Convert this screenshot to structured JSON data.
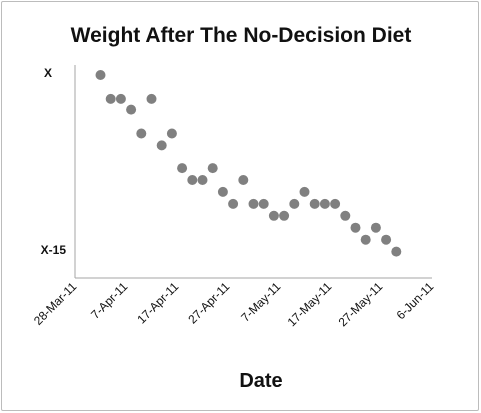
{
  "chart_data": {
    "type": "scatter",
    "title": "Weight After The No-Decision Diet",
    "xlabel": "Date",
    "ylabel": "",
    "x_tick_labels": [
      "28-Mar-11",
      "7-Apr-11",
      "17-Apr-11",
      "27-Apr-11",
      "7-May-11",
      "17-May-11",
      "27-May-11",
      "6-Jun-11"
    ],
    "xlim": [
      "2011-03-28",
      "2011-06-06"
    ],
    "y_tick_labels": [
      "X",
      "X-15"
    ],
    "y_tick_values": [
      0,
      -15
    ],
    "ylim": [
      -16,
      0
    ],
    "grid": false,
    "marker_color": "#808080",
    "points": [
      {
        "x": "2011-04-02",
        "y": 0.0
      },
      {
        "x": "2011-04-04",
        "y": -2.0
      },
      {
        "x": "2011-04-06",
        "y": -2.0
      },
      {
        "x": "2011-04-08",
        "y": -2.9
      },
      {
        "x": "2011-04-10",
        "y": -4.9
      },
      {
        "x": "2011-04-12",
        "y": -2.0
      },
      {
        "x": "2011-04-14",
        "y": -5.9
      },
      {
        "x": "2011-04-16",
        "y": -4.9
      },
      {
        "x": "2011-04-18",
        "y": -7.8
      },
      {
        "x": "2011-04-20",
        "y": -8.8
      },
      {
        "x": "2011-04-22",
        "y": -8.8
      },
      {
        "x": "2011-04-24",
        "y": -7.8
      },
      {
        "x": "2011-04-26",
        "y": -9.8
      },
      {
        "x": "2011-04-28",
        "y": -10.8
      },
      {
        "x": "2011-04-30",
        "y": -8.8
      },
      {
        "x": "2011-05-02",
        "y": -10.8
      },
      {
        "x": "2011-05-04",
        "y": -10.8
      },
      {
        "x": "2011-05-06",
        "y": -11.8
      },
      {
        "x": "2011-05-08",
        "y": -11.8
      },
      {
        "x": "2011-05-10",
        "y": -10.8
      },
      {
        "x": "2011-05-12",
        "y": -9.8
      },
      {
        "x": "2011-05-14",
        "y": -10.8
      },
      {
        "x": "2011-05-16",
        "y": -10.8
      },
      {
        "x": "2011-05-18",
        "y": -10.8
      },
      {
        "x": "2011-05-20",
        "y": -11.8
      },
      {
        "x": "2011-05-22",
        "y": -12.8
      },
      {
        "x": "2011-05-24",
        "y": -13.8
      },
      {
        "x": "2011-05-26",
        "y": -12.8
      },
      {
        "x": "2011-05-28",
        "y": -13.8
      },
      {
        "x": "2011-05-30",
        "y": -14.8
      }
    ]
  }
}
